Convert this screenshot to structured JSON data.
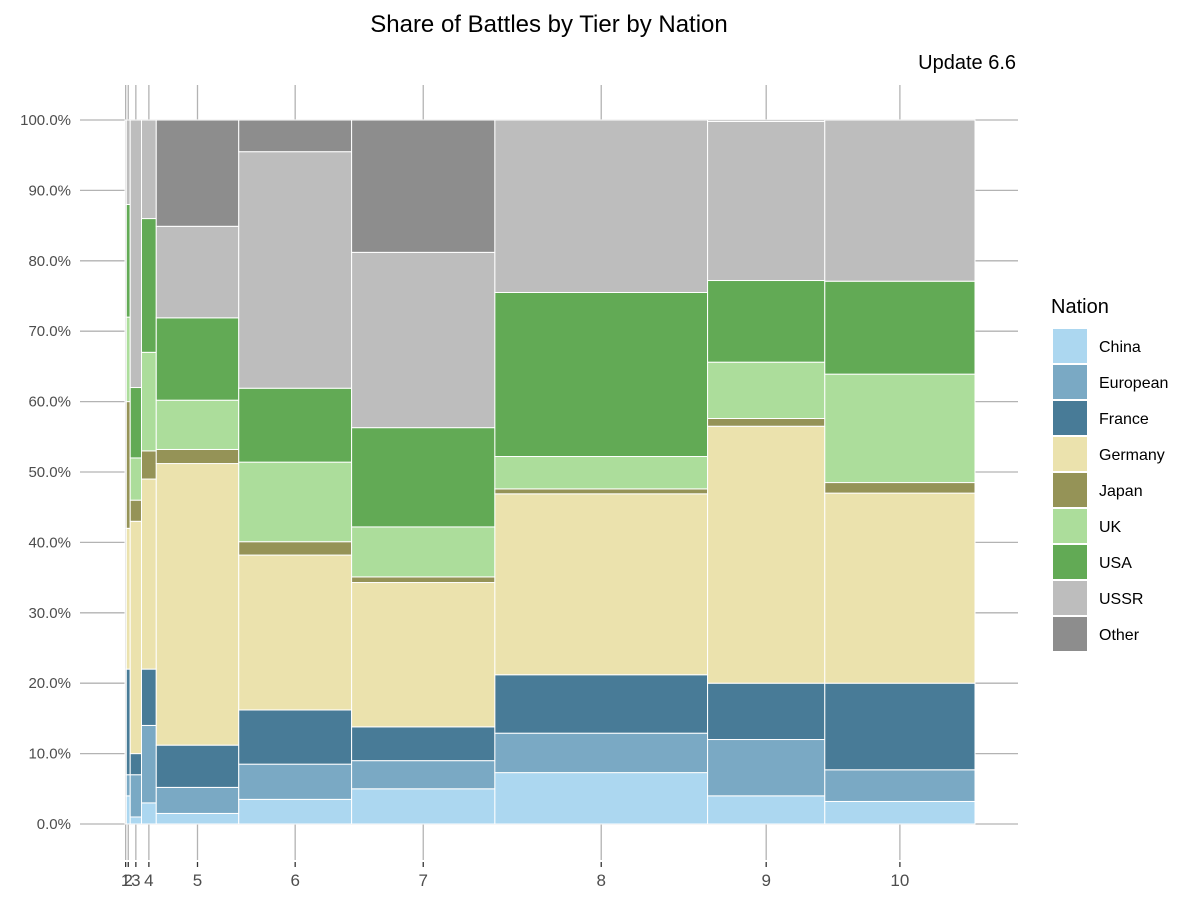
{
  "chart_data": {
    "type": "bar",
    "variant": "stacked-100-percent-variable-width",
    "title": "Share of Battles by Tier by Nation",
    "subtitle": "Update 6.6",
    "xlabel": "",
    "ylabel": "",
    "ylim": [
      0,
      100
    ],
    "y_ticks": [
      "0.0%",
      "10.0%",
      "20.0%",
      "30.0%",
      "40.0%",
      "50.0%",
      "60.0%",
      "70.0%",
      "80.0%",
      "90.0%",
      "100.0%"
    ],
    "grid": true,
    "legend_position": "right",
    "legend_title": "Nation",
    "series": [
      {
        "name": "China",
        "color": "#acd7f0"
      },
      {
        "name": "European",
        "color": "#7aa9c4"
      },
      {
        "name": "France",
        "color": "#487b97"
      },
      {
        "name": "Germany",
        "color": "#ebe2ad"
      },
      {
        "name": "Japan",
        "color": "#959357"
      },
      {
        "name": "UK",
        "color": "#acdd9b"
      },
      {
        "name": "USA",
        "color": "#62aa55"
      },
      {
        "name": "USSR",
        "color": "#bdbdbd"
      },
      {
        "name": "Other",
        "color": "#8d8d8d"
      }
    ],
    "tiers": [
      {
        "label": "1",
        "battle_share": 0.15,
        "values": [
          0,
          0,
          0,
          0,
          0,
          0,
          0,
          0,
          100
        ]
      },
      {
        "label": "2",
        "battle_share": 0.45,
        "values": [
          4,
          3,
          15,
          20,
          18,
          12,
          16,
          12,
          0
        ]
      },
      {
        "label": "3",
        "battle_share": 1.3,
        "values": [
          1,
          6,
          3,
          33,
          3,
          6,
          10,
          38,
          0
        ]
      },
      {
        "label": "4",
        "battle_share": 1.7,
        "values": [
          3,
          11,
          8,
          27,
          4,
          14,
          19,
          14,
          0
        ]
      },
      {
        "label": "5",
        "battle_share": 9.5,
        "values": [
          1.5,
          3.7,
          6,
          40,
          2,
          7,
          11.7,
          13,
          15.1
        ]
      },
      {
        "label": "6",
        "battle_share": 13.0,
        "values": [
          3.5,
          5,
          7.7,
          22,
          1.9,
          11.3,
          10.5,
          33.6,
          4.5
        ]
      },
      {
        "label": "7",
        "battle_share": 16.5,
        "values": [
          5,
          4,
          4.8,
          20.5,
          0.8,
          7.1,
          14.1,
          24.9,
          18.8
        ]
      },
      {
        "label": "8",
        "battle_share": 24.5,
        "values": [
          7.3,
          5.6,
          8.3,
          25.7,
          0.7,
          4.6,
          23.3,
          24.5,
          0
        ]
      },
      {
        "label": "9",
        "battle_share": 13.5,
        "values": [
          4,
          8,
          8,
          36.5,
          1.1,
          8,
          11.6,
          22.6,
          0.2
        ]
      },
      {
        "label": "10",
        "battle_share": 17.3,
        "values": [
          3.2,
          4.5,
          12.3,
          27,
          1.5,
          15.4,
          13.2,
          22.9,
          0
        ]
      }
    ]
  }
}
